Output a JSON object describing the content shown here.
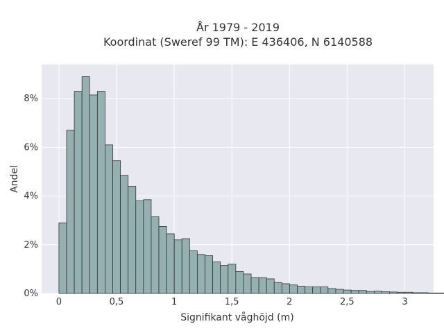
{
  "chart_data": {
    "type": "bar",
    "title_line1": "År 1979 - 2019",
    "title_line2": "Koordinat (Sweref 99 TM): E 436406, N 6140588",
    "xlabel": "Signifikant våghöjd (m)",
    "ylabel": "Andel",
    "bin_width": 0.0667,
    "x_start": 0,
    "xlim": [
      -0.15,
      3.25
    ],
    "ylim": [
      0,
      9.4
    ],
    "x_ticks": [
      0,
      0.5,
      1,
      1.5,
      2,
      2.5,
      3
    ],
    "x_tick_labels": [
      "0",
      "0,5",
      "1",
      "1,5",
      "2",
      "2,5",
      "3"
    ],
    "y_ticks": [
      0,
      2,
      4,
      6,
      8
    ],
    "y_tick_labels": [
      "0%",
      "2%",
      "4%",
      "6%",
      "8%"
    ],
    "values": [
      2.9,
      6.7,
      8.3,
      8.9,
      8.15,
      8.3,
      6.1,
      5.45,
      4.85,
      4.4,
      3.8,
      3.85,
      3.15,
      2.75,
      2.45,
      2.2,
      2.25,
      1.75,
      1.6,
      1.55,
      1.3,
      1.15,
      1.2,
      0.9,
      0.8,
      0.65,
      0.65,
      0.6,
      0.45,
      0.4,
      0.35,
      0.3,
      0.27,
      0.27,
      0.27,
      0.2,
      0.17,
      0.14,
      0.12,
      0.12,
      0.08,
      0.1,
      0.07,
      0.06,
      0.05,
      0.05,
      0.03,
      0.03,
      0.02,
      0.02,
      0.02,
      0.01
    ],
    "grid": true,
    "colors": {
      "bar_fill": "#94b0b0",
      "bar_stroke": "#333333",
      "plot_bg": "#e8e8f0",
      "grid": "#ffffff"
    }
  }
}
